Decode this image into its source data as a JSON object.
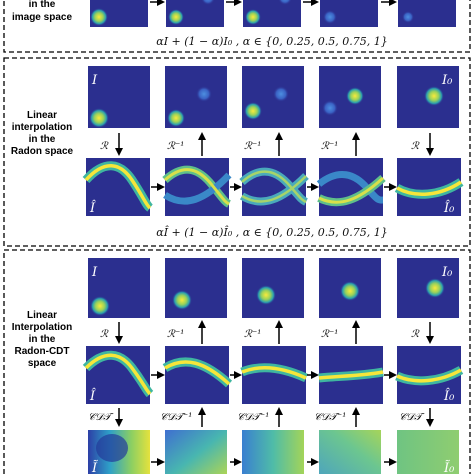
{
  "colors": {
    "panel_bg": "#2b2f8f",
    "blob_core": "#f9ea3c",
    "blob_mid": "#62c07a",
    "blob_outer": "#1f8fb0"
  },
  "sections": [
    {
      "id": "image-space",
      "label_lines": [
        "in the",
        "image space"
      ],
      "equation": "αI + (1 − α)I₀ ,  α ∈ {0, 0.25, 0.5, 0.75, 1}",
      "alpha_values": [
        0,
        0.25,
        0.5,
        0.75,
        1
      ]
    },
    {
      "id": "radon-space",
      "label_lines": [
        "Linear",
        "interpolation",
        "in the",
        "Radon space"
      ],
      "equation": "αÎ + (1 − α)Î₀ ,  α ∈ {0, 0.25, 0.5, 0.75, 1}",
      "alpha_values": [
        0,
        0.25,
        0.5,
        0.75,
        1
      ],
      "image_labels": {
        "first": "I",
        "last": "I₀"
      },
      "sinogram_labels": {
        "first": "Î",
        "last": "Î₀"
      },
      "operators": [
        "ℛ",
        "ℛ⁻¹",
        "ℛ⁻¹",
        "ℛ⁻¹",
        "ℛ"
      ]
    },
    {
      "id": "radon-cdt-space",
      "label_lines": [
        "Linear",
        "Interpolation",
        "in the",
        "Radon-CDT",
        "space"
      ],
      "image_labels": {
        "first": "I",
        "last": "I₀"
      },
      "sinogram_labels": {
        "first": "Î",
        "last": "Î₀"
      },
      "radon_operators": [
        "ℛ",
        "ℛ⁻¹",
        "ℛ⁻¹",
        "ℛ⁻¹",
        "ℛ"
      ],
      "cdt_operators": [
        "𝒞𝒟𝒯",
        "𝒞𝒟𝒯⁻¹",
        "𝒞𝒟𝒯⁻¹",
        "𝒞𝒟𝒯⁻¹",
        "𝒞𝒟𝒯"
      ],
      "transform_labels": {
        "first": "Ĩ",
        "last": "Ĩ₀"
      }
    }
  ]
}
